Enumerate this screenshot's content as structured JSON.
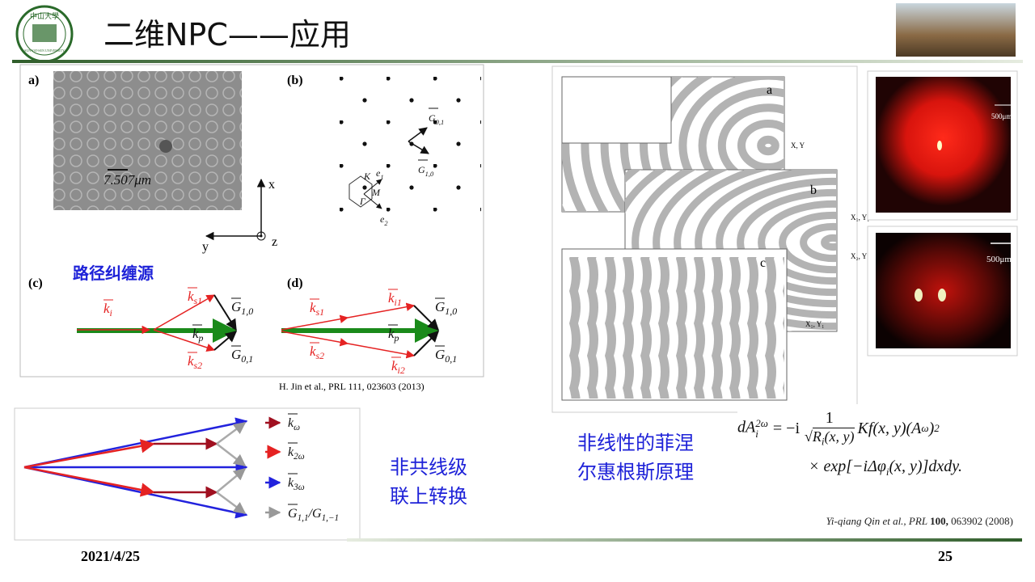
{
  "header": {
    "title": "二维NPC——应用",
    "logo_text": "中山大學",
    "logo_subtext": "SUN YAT-SEN UNIVERSITY"
  },
  "figure1": {
    "panels": [
      "a)",
      "(b)",
      "(c)",
      "(d)"
    ],
    "scale_label": "7.507μm",
    "axes": [
      "x",
      "y",
      "z"
    ],
    "lattice_labels": [
      {
        "base": "G",
        "sub": "0,1"
      },
      {
        "base": "G",
        "sub": "1,0"
      },
      {
        "base": "K",
        "sub": ""
      },
      {
        "base": "e",
        "sub": "1"
      },
      {
        "base": "M",
        "sub": ""
      },
      {
        "base": "Γ",
        "sub": ""
      },
      {
        "base": "e",
        "sub": "2"
      }
    ],
    "annotation": "路径纠缠源",
    "vectors_c": [
      {
        "base": "k",
        "sub": "i"
      },
      {
        "base": "k",
        "sub": "s1"
      },
      {
        "base": "G",
        "sub": "1,0"
      },
      {
        "base": "k",
        "sub": "p"
      },
      {
        "base": "k",
        "sub": "s2"
      },
      {
        "base": "G",
        "sub": "0,1"
      }
    ],
    "vectors_d": [
      {
        "base": "k",
        "sub": "s1"
      },
      {
        "base": "k",
        "sub": "i1"
      },
      {
        "base": "G",
        "sub": "1,0"
      },
      {
        "base": "k",
        "sub": "p"
      },
      {
        "base": "k",
        "sub": "s2"
      },
      {
        "base": "k",
        "sub": "i2"
      },
      {
        "base": "G",
        "sub": "0,1"
      }
    ],
    "citation": "H. Jin et al., PRL 111, 023603 (2013)"
  },
  "figure2": {
    "legend": [
      {
        "base": "k",
        "sub": "ω"
      },
      {
        "base": "k",
        "sub": "2ω"
      },
      {
        "base": "k",
        "sub": "3ω"
      },
      {
        "base": "G",
        "sub": "1,1",
        "sep": "/",
        "base2": "G",
        "sub2": "1,−1"
      }
    ]
  },
  "caption_left": [
    "非共线级",
    "联上转换"
  ],
  "figure3": {
    "labels": [
      "a",
      "b",
      "c"
    ],
    "coord_labels": [
      "X, Y",
      "X₁, Y₁",
      "X₂, Y",
      "X₁, Y₁"
    ],
    "scale_labels": [
      "500μm",
      "500μm"
    ]
  },
  "caption_mid": [
    "非线性的菲涅",
    "尔惠根斯原理"
  ],
  "equation": {
    "lhs": "dA",
    "lhs_sub": "i",
    "lhs_sup": "2ω",
    "eq": "= −i",
    "num": "1",
    "den": "R",
    "den_sub": "i",
    "den_rest": "(x, y)",
    "rhs": "Kf(x, y)(A",
    "rhs_sup1": "ω",
    "rhs_close": ")",
    "rhs_sup2": "2",
    "line2a": "× exp[−iΔφ",
    "line2_sub": "i",
    "line2b": "(x, y)]dxdy."
  },
  "citation2": {
    "authors": "Yi-qiang Qin et al., PRL ",
    "volume": "100,",
    "rest": " 063902 (2008)"
  },
  "footer": {
    "date": "2021/4/25",
    "page": "25"
  }
}
